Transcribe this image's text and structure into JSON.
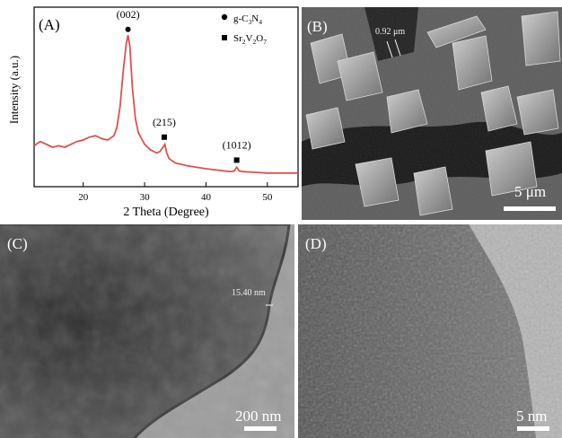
{
  "panel_a": {
    "letter": "(A)",
    "ylabel": "Intensity (a.u.)",
    "xlabel": "2 Theta (Degree)",
    "xticks": [
      "20",
      "30",
      "40",
      "50"
    ],
    "legend": {
      "item1_base": "g-C",
      "item1_sub1": "3",
      "item1_mid": "N",
      "item1_sub2": "4",
      "item2_base": "Sr",
      "item2_sub1": "2",
      "item2_mid": "V",
      "item2_sub2": "2",
      "item2_end": "O",
      "item2_sub3": "7"
    },
    "peak_labels": [
      "(002)",
      "(215)",
      "(1012)"
    ]
  },
  "panel_b": {
    "letter": "(B)",
    "measure": "0.92 μm",
    "scale": "5 μm"
  },
  "panel_c": {
    "letter": "(C)",
    "measure": "15.40 nm",
    "scale": "200 nm"
  },
  "panel_d": {
    "letter": "(D)",
    "scale": "5 nm"
  },
  "chart_data": {
    "type": "line",
    "title": "",
    "xlabel": "2 Theta (Degree)",
    "ylabel": "Intensity (a.u.)",
    "xlim": [
      12,
      55
    ],
    "x_ticks": [
      20,
      30,
      40,
      50
    ],
    "y_ticks": [],
    "color": "#e05050",
    "series": [
      {
        "x": [
          12,
          13,
          14,
          15,
          16,
          17,
          18,
          19,
          20,
          21,
          22,
          23,
          24,
          25,
          25.5,
          26,
          26.5,
          27,
          27.3,
          27.6,
          28,
          28.5,
          29,
          30,
          31,
          32,
          32.5,
          33,
          33.3,
          33.6,
          34,
          35,
          37,
          40,
          42,
          44,
          44.6,
          45,
          45.4,
          46,
          48,
          50,
          52,
          55
        ],
        "y": [
          0.21,
          0.24,
          0.22,
          0.2,
          0.21,
          0.2,
          0.22,
          0.24,
          0.25,
          0.27,
          0.28,
          0.26,
          0.25,
          0.28,
          0.34,
          0.48,
          0.72,
          0.92,
          0.98,
          0.9,
          0.62,
          0.4,
          0.3,
          0.22,
          0.18,
          0.16,
          0.17,
          0.2,
          0.22,
          0.16,
          0.12,
          0.09,
          0.07,
          0.05,
          0.04,
          0.03,
          0.035,
          0.06,
          0.035,
          0.03,
          0.025,
          0.02,
          0.02,
          0.02
        ]
      }
    ],
    "markers": [
      {
        "type": "circle",
        "x": 27.3,
        "y": 1.02,
        "label": "(002)",
        "label_y": 1.1
      },
      {
        "type": "square",
        "x": 33.2,
        "y": 0.27,
        "label": "(215)",
        "label_y": 0.35
      },
      {
        "type": "square",
        "x": 45.0,
        "y": 0.11,
        "label": "(1012)",
        "label_y": 0.19
      }
    ]
  }
}
